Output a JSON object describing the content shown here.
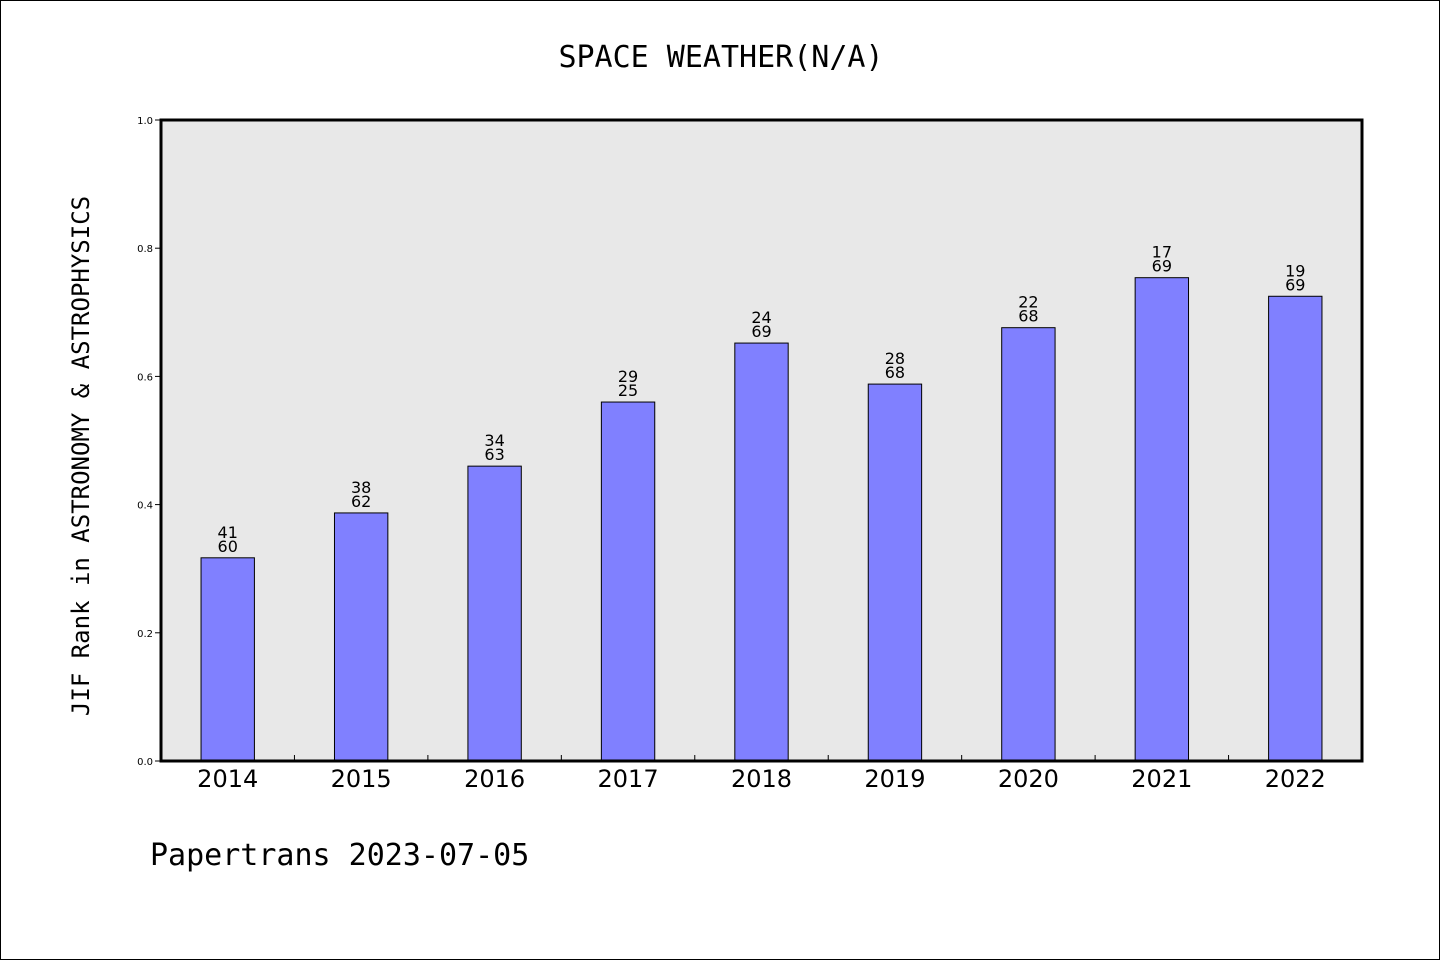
{
  "chart_data": {
    "type": "bar",
    "title": "SPACE WEATHER(N/A)",
    "ylabel": "JIF Rank in ASTRONOMY & ASTROPHYSICS",
    "xlabel": "",
    "categories": [
      "2014",
      "2015",
      "2016",
      "2017",
      "2018",
      "2019",
      "2020",
      "2021",
      "2022"
    ],
    "values": [
      0.317,
      0.387,
      0.46,
      0.56,
      0.652,
      0.588,
      0.676,
      0.754,
      0.725
    ],
    "rank": [
      "41",
      "38",
      "34",
      "29",
      "24",
      "28",
      "22",
      "17",
      "19"
    ],
    "total": [
      "60",
      "62",
      "63",
      "25",
      "69",
      "68",
      "68",
      "69",
      "69"
    ],
    "ylim": [
      0,
      1.0
    ],
    "yticks": [
      "0.0",
      "0.2",
      "0.4",
      "0.6",
      "0.8",
      "1.0"
    ],
    "grid": false,
    "bar_color": "#8080ff",
    "plot_background": "#e8e8e8"
  },
  "footer": "Papertrans 2023-07-05"
}
